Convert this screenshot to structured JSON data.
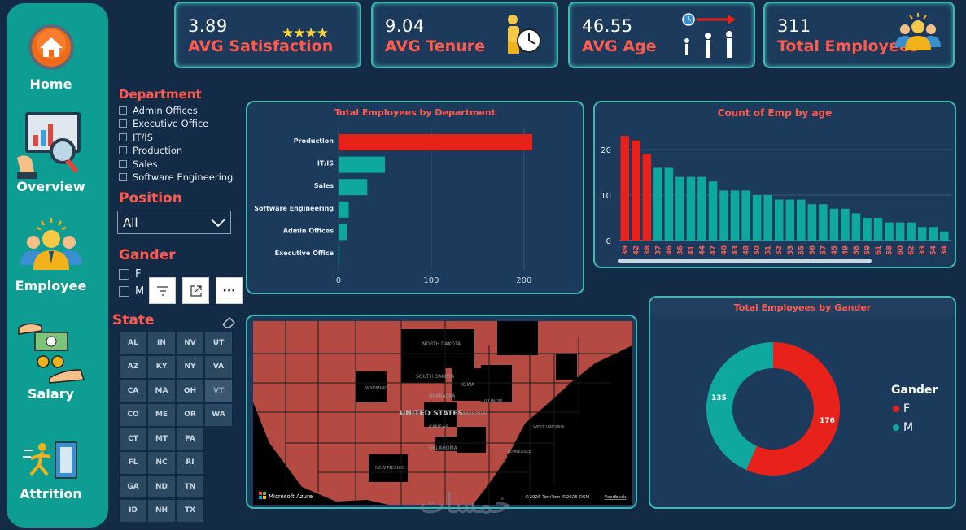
{
  "nav": {
    "items": [
      {
        "label": "Home"
      },
      {
        "label": "Overview"
      },
      {
        "label": "Employee"
      },
      {
        "label": "Salary"
      },
      {
        "label": "Attrition"
      }
    ]
  },
  "kpis": [
    {
      "value": "3.89",
      "label": "AVG Satisfaction",
      "stars": "★★★★"
    },
    {
      "value": "9.04",
      "label": "AVG Tenure"
    },
    {
      "value": "46.55",
      "label": "AVG Age"
    },
    {
      "value": "311",
      "label": "Total Employees"
    }
  ],
  "slicers": {
    "department": {
      "title": "Department",
      "options": [
        "Admin Offices",
        "Executive Office",
        "IT/IS",
        "Production",
        "Sales",
        "Software Engineering"
      ]
    },
    "position": {
      "title": "Position",
      "selected": "All"
    },
    "gender": {
      "title": "Gander",
      "options": [
        "F",
        "M"
      ]
    },
    "state": {
      "title": "State",
      "tiles": [
        "AL",
        "IN",
        "NV",
        "UT",
        "AZ",
        "KY",
        "NY",
        "VA",
        "CA",
        "MA",
        "OH",
        "VT",
        "CO",
        "ME",
        "OR",
        "WA",
        "CT",
        "MT",
        "PA",
        "FL",
        "NC",
        "RI",
        "GA",
        "ND",
        "TN",
        "ID",
        "NH",
        "TX"
      ]
    }
  },
  "toolbar": {
    "filter_icon": "filter-icon",
    "focus_icon": "focus-mode-icon",
    "more_label": "···"
  },
  "map": {
    "credit": "Microsoft Azure",
    "copyright": "©2026 TomTom ©2026 OSM",
    "feedback": "Feedback",
    "country_label": "UNITED STATES",
    "state_labels": [
      "NORTH DAKOTA",
      "SOUTH DAKOTA",
      "WYOMING",
      "NEBRASKA",
      "KANSAS",
      "OKLAHOMA",
      "NEW MEXICO",
      "IOWA",
      "MISSOURI",
      "ILLINOIS",
      "WEST VIRGINIA",
      "TENNESSEE"
    ]
  },
  "watermark": "خمسات",
  "colors": {
    "accent": "#0fa89f",
    "highlight": "#e8211b",
    "kpi_label": "#ff5a4e",
    "panel": "#1b3a5c",
    "bg": "#132b47"
  },
  "chart_data": [
    {
      "type": "bar",
      "orientation": "horizontal",
      "title": "Total Employees by Department",
      "categories": [
        "Production",
        "IT/IS",
        "Sales",
        "Software Engineering",
        "Admin Offices",
        "Executive Office"
      ],
      "values": [
        209,
        50,
        31,
        11,
        9,
        1
      ],
      "xlim": [
        0,
        230
      ],
      "xticks": [
        0,
        100,
        200
      ]
    },
    {
      "type": "bar",
      "title": "Count of Emp by age",
      "categories": [
        "39",
        "42",
        "38",
        "37",
        "46",
        "36",
        "41",
        "44",
        "47",
        "40",
        "43",
        "48",
        "50",
        "51",
        "52",
        "53",
        "55",
        "56",
        "57",
        "45",
        "49",
        "58",
        "59",
        "61",
        "58",
        "60",
        "62",
        "33",
        "54",
        "34"
      ],
      "values": [
        23,
        22,
        19,
        16,
        16,
        14,
        14,
        14,
        13,
        11,
        11,
        11,
        10,
        10,
        9,
        9,
        9,
        8,
        8,
        7,
        7,
        6,
        5,
        5,
        4,
        4,
        4,
        3,
        3,
        2
      ],
      "highlight_count": 3,
      "ylim": [
        0,
        25
      ],
      "yticks": [
        0,
        10,
        20
      ]
    },
    {
      "type": "pie",
      "donut": true,
      "title": "Total Employees by Gander",
      "legend_title": "Gander",
      "categories": [
        "F",
        "M"
      ],
      "values": [
        176,
        135
      ]
    }
  ]
}
